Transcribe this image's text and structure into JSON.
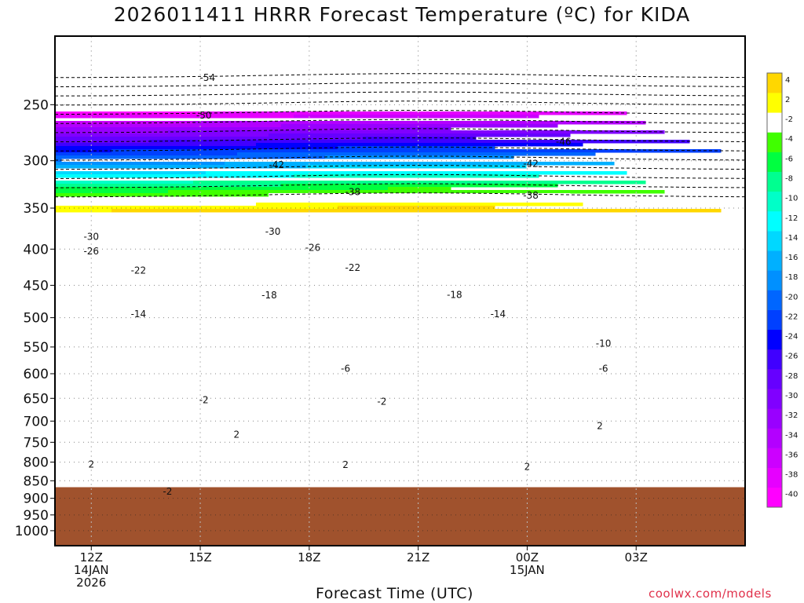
{
  "chart_data": {
    "type": "heatmap",
    "title": "2026011411 HRRR Forecast Temperature (ºC) for KIDA",
    "xlabel": "Forecast Time (UTC)",
    "ylabel": "",
    "y_scale": "log-pressure",
    "y_inverted": true,
    "ylim": [
      1050,
      200
    ],
    "y_ticks": [
      250,
      300,
      350,
      400,
      450,
      500,
      550,
      600,
      650,
      700,
      750,
      800,
      850,
      900,
      950,
      1000
    ],
    "y_tick_labels": [
      "250",
      "300",
      "350",
      "400",
      "450",
      "500",
      "550",
      "600",
      "650",
      "700",
      "750",
      "800",
      "850",
      "900",
      "950",
      "1000"
    ],
    "xlim": [
      11,
      30
    ],
    "x_ticks": [
      {
        "hour": 12,
        "lines": [
          "12Z",
          "14JAN",
          "2026"
        ]
      },
      {
        "hour": 15,
        "lines": [
          "15Z"
        ]
      },
      {
        "hour": 18,
        "lines": [
          "18Z"
        ]
      },
      {
        "hour": 21,
        "lines": [
          "21Z"
        ]
      },
      {
        "hour": 24,
        "lines": [
          "00Z",
          "15JAN"
        ]
      },
      {
        "hour": 27,
        "lines": [
          "03Z"
        ]
      }
    ],
    "grid": true,
    "ground_pressure": 868,
    "ground_color": "#a0522d",
    "colorbar": {
      "levels": [
        -40,
        -38,
        -36,
        -34,
        -32,
        -30,
        -28,
        -26,
        -24,
        -22,
        -20,
        -18,
        -16,
        -14,
        -12,
        -10,
        -8,
        -6,
        -4,
        -2,
        2,
        4
      ],
      "labels": [
        "-40",
        "-38",
        "-36",
        "-34",
        "-32",
        "-30",
        "-28",
        "-26",
        "-24",
        "-22",
        "-20",
        "-18",
        "-16",
        "-14",
        "-12",
        "-10",
        "-8",
        "-6",
        "-4",
        "-2",
        "2",
        "4"
      ],
      "colors": [
        "#ff00ff",
        "#e600ff",
        "#cc00ff",
        "#b300ff",
        "#9900ff",
        "#8000ff",
        "#6600ff",
        "#4000ff",
        "#0000ff",
        "#0040ff",
        "#0066ff",
        "#0090ff",
        "#00b0ff",
        "#00d8ff",
        "#00ffff",
        "#00ffc8",
        "#00ff90",
        "#00ff40",
        "#40ff00",
        "#ffffff",
        "#ffff00",
        "#ffd700"
      ]
    },
    "contour_labels": [
      {
        "text": "-54",
        "hour": 15.2,
        "p": 229
      },
      {
        "text": "-50",
        "hour": 15.1,
        "p": 259
      },
      {
        "text": "-46",
        "hour": 25.0,
        "p": 282
      },
      {
        "text": "-42",
        "hour": 17.1,
        "p": 304
      },
      {
        "text": "-42",
        "hour": 24.1,
        "p": 303
      },
      {
        "text": "-38",
        "hour": 19.2,
        "p": 332
      },
      {
        "text": "-38",
        "hour": 24.1,
        "p": 336
      },
      {
        "text": "-30",
        "hour": 12.0,
        "p": 384
      },
      {
        "text": "-30",
        "hour": 17.0,
        "p": 378
      },
      {
        "text": "-26",
        "hour": 12.0,
        "p": 403
      },
      {
        "text": "-26",
        "hour": 18.1,
        "p": 398
      },
      {
        "text": "-22",
        "hour": 13.3,
        "p": 429
      },
      {
        "text": "-22",
        "hour": 19.2,
        "p": 425
      },
      {
        "text": "-18",
        "hour": 16.9,
        "p": 465
      },
      {
        "text": "-18",
        "hour": 22.0,
        "p": 464
      },
      {
        "text": "-14",
        "hour": 13.3,
        "p": 494
      },
      {
        "text": "-14",
        "hour": 23.2,
        "p": 494
      },
      {
        "text": "-10",
        "hour": 26.1,
        "p": 544
      },
      {
        "text": "-6",
        "hour": 19.0,
        "p": 590
      },
      {
        "text": "-6",
        "hour": 26.1,
        "p": 590
      },
      {
        "text": "-2",
        "hour": 15.1,
        "p": 654
      },
      {
        "text": "-2",
        "hour": 20.0,
        "p": 657
      },
      {
        "text": "2",
        "hour": 16.0,
        "p": 731
      },
      {
        "text": "2",
        "hour": 26.0,
        "p": 711
      },
      {
        "text": "2",
        "hour": 12.0,
        "p": 806
      },
      {
        "text": "2",
        "hour": 19.0,
        "p": 807
      },
      {
        "text": "2",
        "hour": 24.0,
        "p": 812
      },
      {
        "text": "-2",
        "hour": 14.1,
        "p": 880
      }
    ]
  },
  "watermark": "coolwx.com/models"
}
